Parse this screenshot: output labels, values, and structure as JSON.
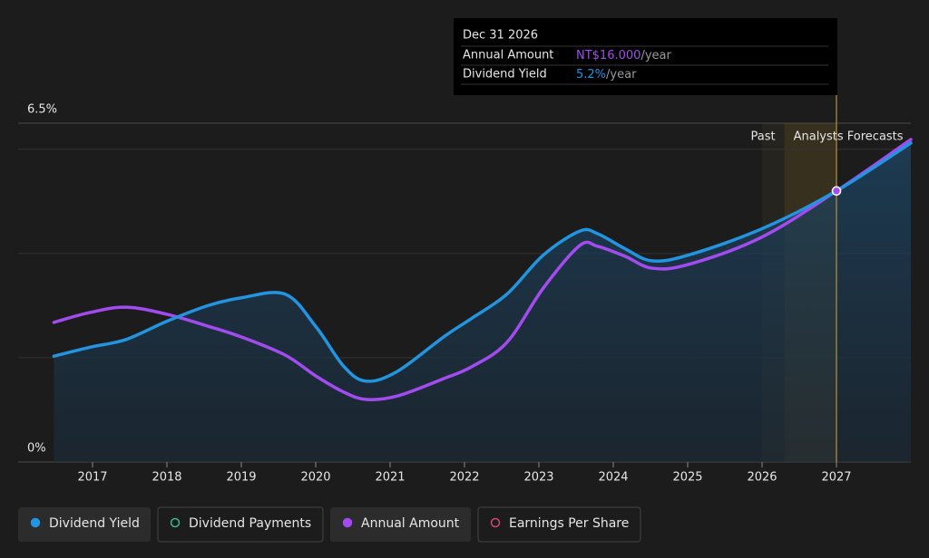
{
  "chart_data": {
    "type": "line",
    "x": [
      2016.48,
      2016.96,
      2017.45,
      2018.0,
      2018.55,
      2019.0,
      2019.59,
      2020.0,
      2020.38,
      2020.68,
      2021.1,
      2021.72,
      2022.09,
      2022.57,
      2023.06,
      2023.55,
      2023.79,
      2024.16,
      2024.52,
      2025.01,
      2025.99,
      2027.0,
      2028.0
    ],
    "series": [
      {
        "name": "Dividend Yield",
        "color": "#2394df",
        "area": true,
        "values": [
          2.03,
          2.2,
          2.35,
          2.7,
          3.0,
          3.15,
          3.22,
          2.6,
          1.83,
          1.55,
          1.74,
          2.4,
          2.75,
          3.22,
          3.97,
          4.43,
          4.38,
          4.09,
          3.86,
          3.97,
          4.47,
          5.2,
          6.12
        ]
      },
      {
        "name": "Annual Amount",
        "color": "#a24cf0",
        "axis": "y2",
        "values": [
          8.24,
          8.82,
          9.14,
          8.72,
          8.02,
          7.38,
          6.31,
          5.08,
          4.12,
          3.69,
          3.9,
          4.92,
          5.61,
          7.06,
          10.27,
          12.78,
          12.73,
          12.14,
          11.44,
          11.66,
          13.26,
          16.0,
          19.04
        ]
      }
    ],
    "xlim": [
      2016,
      2028
    ],
    "xticks": [
      2017,
      2018,
      2019,
      2020,
      2021,
      2022,
      2023,
      2024,
      2025,
      2026,
      2027
    ],
    "ylim": [
      0,
      6.5
    ],
    "yticks": [
      {
        "value": 0,
        "label": "0%"
      },
      {
        "value": 6.5,
        "label": "6.5%"
      }
    ],
    "grid_values": [
      2,
      4,
      6
    ],
    "y2lim": [
      0,
      20
    ],
    "regions": {
      "past": {
        "label": "Past"
      },
      "forecast": {
        "label": "Analysts Forecasts",
        "start": 2026.3,
        "end": 2027
      }
    },
    "highlight_index": 21,
    "tooltip": {
      "date": "Dec 31 2026",
      "rows": [
        {
          "label": "Annual Amount",
          "value": "NT$16.000",
          "unit": "/year",
          "series": 1
        },
        {
          "label": "Dividend Yield",
          "value": "5.2%",
          "unit": "/year",
          "series": 0
        }
      ]
    },
    "legend": [
      {
        "series": 0,
        "filled": true
      },
      {
        "name": "Dividend Payments",
        "color": "#3fb58f",
        "filled": false
      },
      {
        "series": 1,
        "filled": true
      },
      {
        "name": "Earnings Per Share",
        "color": "#d2467a",
        "filled": false
      }
    ]
  }
}
